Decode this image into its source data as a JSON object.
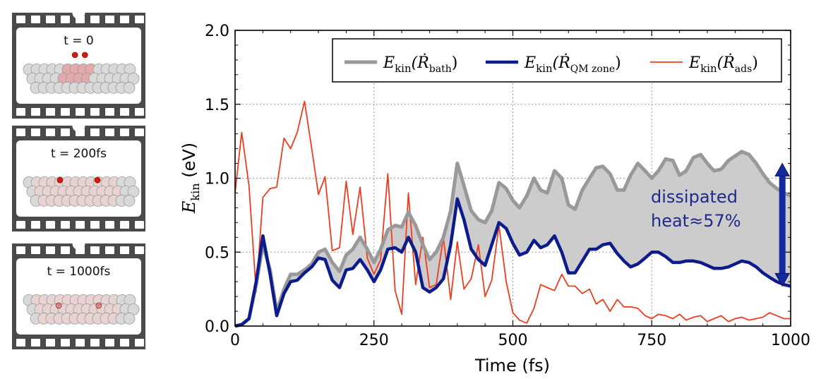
{
  "frames": [
    {
      "label": "t = 0",
      "atoms": [
        [
          0.47,
          0.36
        ],
        [
          0.55,
          0.36
        ]
      ],
      "atom_opacity": 1.0
    },
    {
      "label": "t = 200fs",
      "atoms": [
        [
          0.35,
          0.52
        ],
        [
          0.65,
          0.52
        ]
      ],
      "atom_opacity": 1.0
    },
    {
      "label": "t = 1000fs",
      "atoms": [
        [
          0.34,
          0.62
        ],
        [
          0.66,
          0.62
        ]
      ],
      "atom_opacity": 0.35
    }
  ],
  "chart_data": {
    "type": "line",
    "xlabel": "Time (fs)",
    "ylabel": "E_kin (eV)",
    "ylabel_main": "E",
    "ylabel_sub": "kin",
    "ylabel_unit": " (eV)",
    "xlim": [
      0,
      1000
    ],
    "ylim": [
      0.0,
      2.0
    ],
    "xticks": [
      0,
      250,
      500,
      750,
      1000
    ],
    "yticks": [
      0.0,
      0.5,
      1.0,
      1.5,
      2.0
    ],
    "xtick_labels": [
      "0",
      "250",
      "500",
      "750",
      "1000"
    ],
    "ytick_labels": [
      "0.0",
      "0.5",
      "1.0",
      "1.5",
      "2.0"
    ],
    "grid": true,
    "legend_position": "top",
    "series": [
      {
        "name": "E_kin(Ṙ_bath)",
        "legend_main": "E",
        "legend_sub": "kin",
        "legend_arg": "(Ṙ",
        "legend_argsub": "bath",
        "legend_close": ")",
        "color": "#999999",
        "x": [
          0,
          12,
          25,
          38,
          50,
          63,
          75,
          88,
          100,
          112,
          125,
          138,
          150,
          162,
          175,
          188,
          200,
          212,
          225,
          238,
          250,
          262,
          275,
          288,
          300,
          312,
          325,
          338,
          350,
          362,
          375,
          388,
          400,
          412,
          425,
          438,
          450,
          462,
          475,
          488,
          500,
          512,
          525,
          538,
          550,
          562,
          575,
          588,
          600,
          612,
          625,
          638,
          650,
          662,
          675,
          688,
          700,
          712,
          725,
          738,
          750,
          762,
          775,
          788,
          800,
          812,
          825,
          838,
          850,
          862,
          875,
          888,
          900,
          912,
          925,
          938,
          950,
          962,
          975,
          988,
          1000
        ],
        "y": [
          0.0,
          0.01,
          0.05,
          0.28,
          0.55,
          0.38,
          0.1,
          0.25,
          0.35,
          0.35,
          0.38,
          0.42,
          0.5,
          0.52,
          0.43,
          0.37,
          0.48,
          0.52,
          0.6,
          0.52,
          0.43,
          0.52,
          0.65,
          0.68,
          0.67,
          0.77,
          0.68,
          0.55,
          0.45,
          0.5,
          0.6,
          0.78,
          1.1,
          0.95,
          0.78,
          0.72,
          0.7,
          0.78,
          0.97,
          0.93,
          0.85,
          0.8,
          0.88,
          1.0,
          0.92,
          0.9,
          1.05,
          1.0,
          0.82,
          0.79,
          0.92,
          1.0,
          1.07,
          1.08,
          1.03,
          0.92,
          0.92,
          1.02,
          1.1,
          1.05,
          1.0,
          1.05,
          1.13,
          1.12,
          1.02,
          1.05,
          1.14,
          1.16,
          1.1,
          1.05,
          1.06,
          1.12,
          1.15,
          1.18,
          1.16,
          1.1,
          1.03,
          0.97,
          0.93,
          0.9,
          0.88
        ]
      },
      {
        "name": "E_kin(Ṙ_QM zone)",
        "legend_main": "E",
        "legend_sub": "kin",
        "legend_arg": "(Ṙ",
        "legend_argsub": "QM zone",
        "legend_close": ")",
        "color": "#0d1c8c",
        "x": [
          0,
          12,
          25,
          38,
          50,
          63,
          75,
          88,
          100,
          112,
          125,
          138,
          150,
          162,
          175,
          188,
          200,
          212,
          225,
          238,
          250,
          262,
          275,
          288,
          300,
          312,
          325,
          338,
          350,
          362,
          375,
          388,
          400,
          412,
          425,
          438,
          450,
          462,
          475,
          488,
          500,
          512,
          525,
          538,
          550,
          562,
          575,
          588,
          600,
          612,
          625,
          638,
          650,
          662,
          675,
          688,
          700,
          712,
          725,
          738,
          750,
          762,
          775,
          788,
          800,
          812,
          825,
          838,
          850,
          862,
          875,
          888,
          900,
          912,
          925,
          938,
          950,
          962,
          975,
          988,
          1000
        ],
        "y": [
          0.0,
          0.01,
          0.05,
          0.3,
          0.61,
          0.35,
          0.07,
          0.22,
          0.3,
          0.31,
          0.36,
          0.4,
          0.46,
          0.45,
          0.31,
          0.26,
          0.38,
          0.39,
          0.45,
          0.38,
          0.3,
          0.38,
          0.52,
          0.53,
          0.5,
          0.6,
          0.5,
          0.26,
          0.23,
          0.26,
          0.32,
          0.55,
          0.86,
          0.72,
          0.52,
          0.45,
          0.41,
          0.55,
          0.7,
          0.66,
          0.56,
          0.48,
          0.5,
          0.58,
          0.53,
          0.55,
          0.61,
          0.5,
          0.36,
          0.36,
          0.44,
          0.52,
          0.52,
          0.55,
          0.56,
          0.49,
          0.44,
          0.4,
          0.42,
          0.46,
          0.5,
          0.5,
          0.47,
          0.43,
          0.43,
          0.44,
          0.44,
          0.43,
          0.41,
          0.39,
          0.39,
          0.4,
          0.42,
          0.44,
          0.43,
          0.4,
          0.36,
          0.33,
          0.3,
          0.28,
          0.27
        ]
      },
      {
        "name": "E_kin(Ṙ_ads)",
        "legend_main": "E",
        "legend_sub": "kin",
        "legend_arg": "(Ṙ",
        "legend_argsub": "ads",
        "legend_close": ")",
        "color": "#f03c1e",
        "x": [
          0,
          12,
          25,
          38,
          50,
          63,
          75,
          88,
          100,
          112,
          125,
          138,
          150,
          162,
          175,
          188,
          200,
          212,
          225,
          238,
          250,
          262,
          275,
          288,
          300,
          312,
          325,
          338,
          350,
          362,
          375,
          388,
          400,
          412,
          425,
          438,
          450,
          462,
          475,
          488,
          500,
          512,
          525,
          538,
          550,
          562,
          575,
          588,
          600,
          612,
          625,
          638,
          650,
          662,
          675,
          688,
          700,
          712,
          725,
          738,
          750,
          762,
          775,
          788,
          800,
          812,
          825,
          838,
          850,
          862,
          875,
          888,
          900,
          912,
          925,
          938,
          950,
          962,
          975,
          988,
          1000
        ],
        "y": [
          0.9,
          1.31,
          0.95,
          0.23,
          0.87,
          0.93,
          0.94,
          1.27,
          1.2,
          1.31,
          1.52,
          1.2,
          0.89,
          1.01,
          0.51,
          0.53,
          0.98,
          0.62,
          0.94,
          0.46,
          0.35,
          0.45,
          1.03,
          0.24,
          0.08,
          0.9,
          0.28,
          0.6,
          0.26,
          0.28,
          0.6,
          0.18,
          0.57,
          0.25,
          0.32,
          0.55,
          0.2,
          0.31,
          0.68,
          0.3,
          0.09,
          0.04,
          0.02,
          0.12,
          0.28,
          0.26,
          0.24,
          0.35,
          0.27,
          0.27,
          0.22,
          0.25,
          0.15,
          0.18,
          0.1,
          0.18,
          0.13,
          0.13,
          0.12,
          0.07,
          0.05,
          0.08,
          0.07,
          0.05,
          0.08,
          0.04,
          0.06,
          0.07,
          0.03,
          0.05,
          0.07,
          0.03,
          0.05,
          0.06,
          0.04,
          0.05,
          0.06,
          0.09,
          0.07,
          0.05,
          0.05
        ]
      }
    ],
    "annotation_line1": "dissipated",
    "annotation_line2": "heat≈57%",
    "fill_between_color": "#cccccc",
    "arrow_color": "#1428a0"
  }
}
